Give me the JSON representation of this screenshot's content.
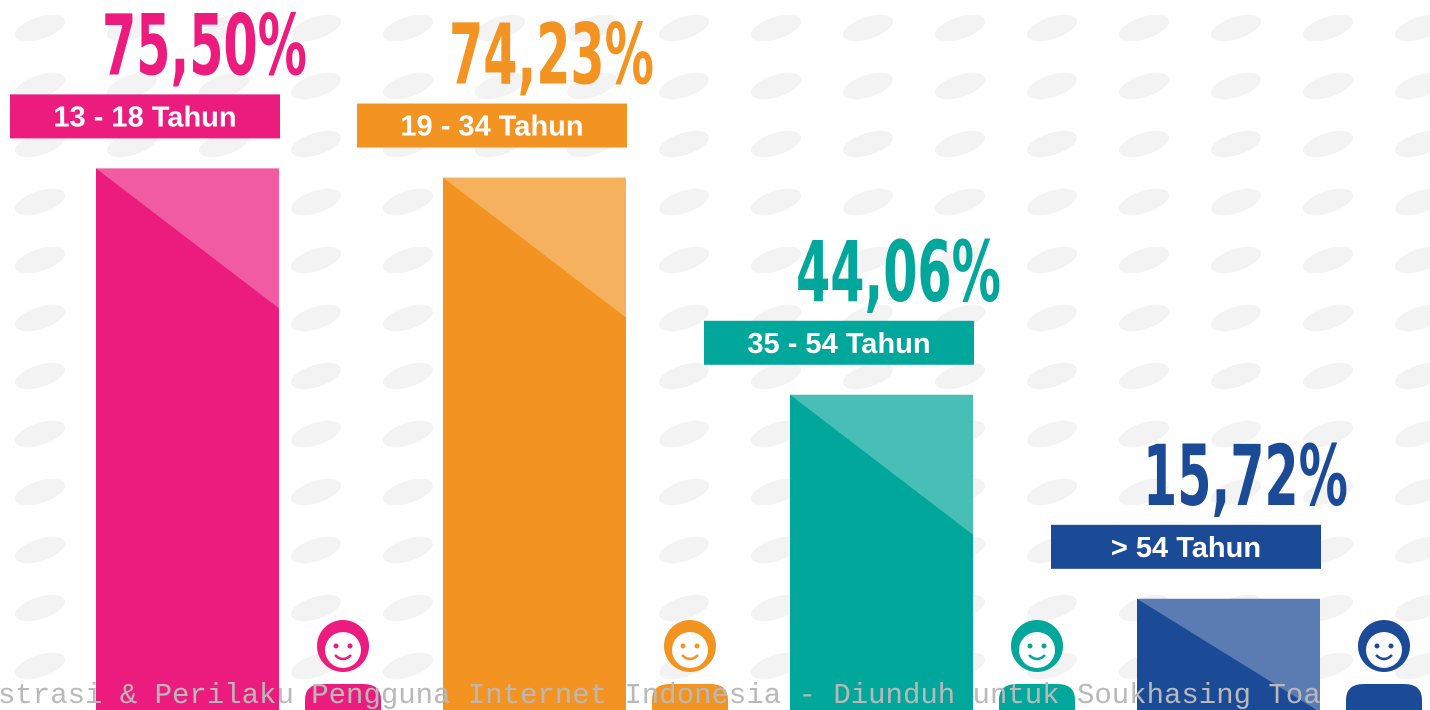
{
  "chart_data": {
    "type": "bar",
    "categories": [
      "13 - 18 Tahun",
      "19 - 34 Tahun",
      "35 - 54 Tahun",
      "> 54 Tahun"
    ],
    "values": [
      75.5,
      74.23,
      44.06,
      15.72
    ],
    "value_labels": [
      "75,50%",
      "74,23%",
      "44,06%",
      "15,72%"
    ],
    "colors": [
      "#ec1c7f",
      "#f39321",
      "#00a79a",
      "#1b4a96"
    ],
    "watermark_text": "strasi & Perilaku Pengguna Internet Indonesia - Diunduh untuk Soukhasing Toa"
  }
}
